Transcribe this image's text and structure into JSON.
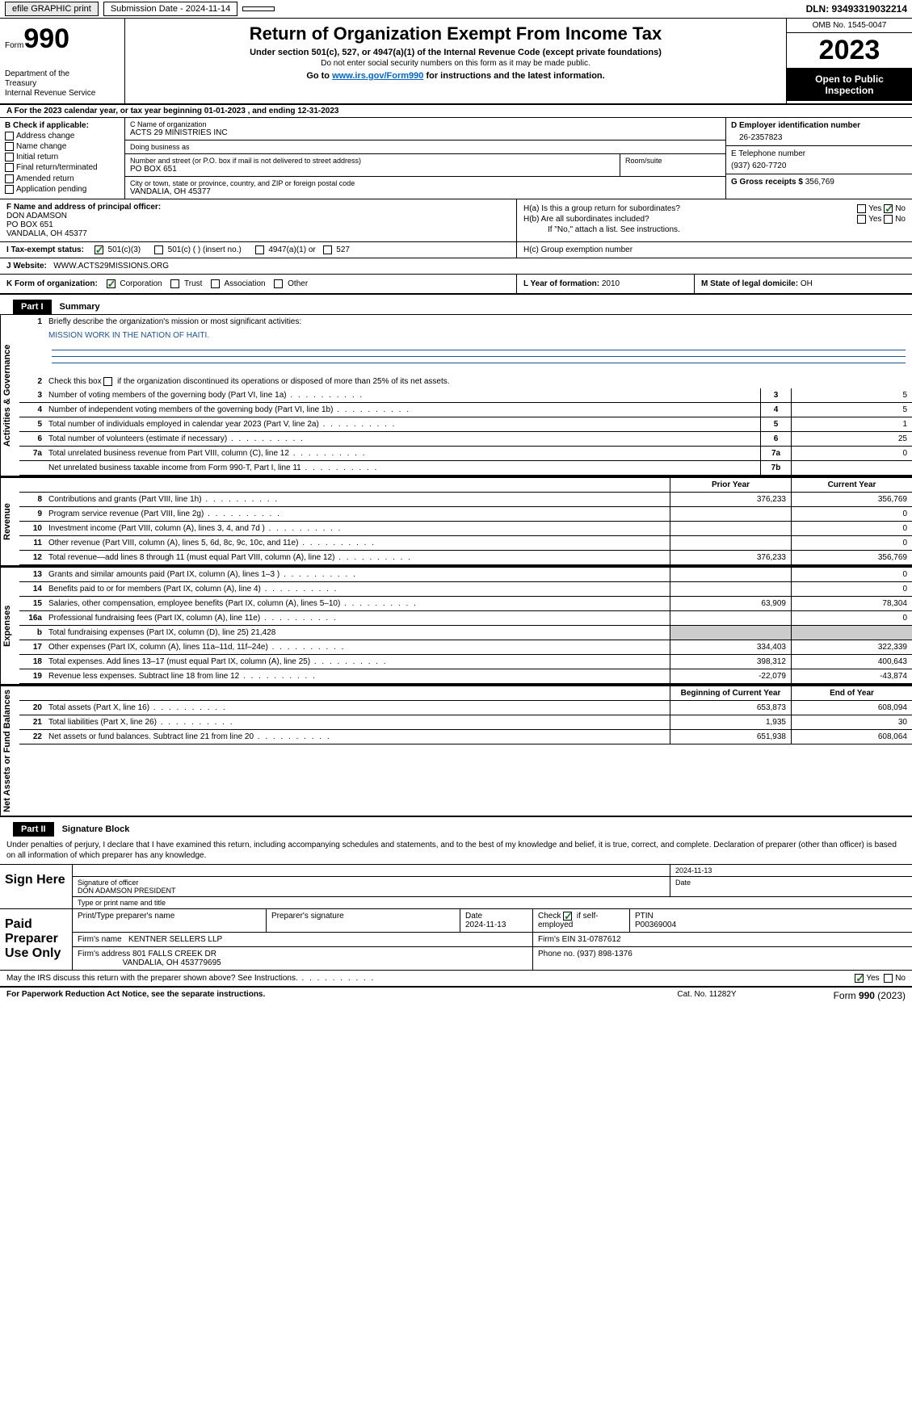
{
  "topbar": {
    "efile_btn": "efile GRAPHIC print",
    "submission_label": "Submission Date - 2024-11-14",
    "dln_label": "DLN: 93493319032214"
  },
  "header": {
    "form_label": "Form",
    "form_number": "990",
    "dept": "Department of the Treasury\nInternal Revenue Service",
    "title": "Return of Organization Exempt From Income Tax",
    "sub1": "Under section 501(c), 527, or 4947(a)(1) of the Internal Revenue Code (except private foundations)",
    "sub2": "Do not enter social security numbers on this form as it may be made public.",
    "link_pre": "Go to ",
    "link_url": "www.irs.gov/Form990",
    "link_post": " for instructions and the latest information.",
    "omb": "OMB No. 1545-0047",
    "year": "2023",
    "open": "Open to Public Inspection"
  },
  "line_a": "A For the 2023 calendar year, or tax year beginning 01-01-2023    , and ending 12-31-2023",
  "box_b": {
    "title": "B Check if applicable:",
    "items": [
      "Address change",
      "Name change",
      "Initial return",
      "Final return/terminated",
      "Amended return",
      "Application pending"
    ]
  },
  "box_c": {
    "name_lbl": "C Name of organization",
    "name": "ACTS 29 MINISTRIES INC",
    "dba_lbl": "Doing business as",
    "dba": "",
    "street_lbl": "Number and street (or P.O. box if mail is not delivered to street address)",
    "room_lbl": "Room/suite",
    "street": "PO BOX 651",
    "city_lbl": "City or town, state or province, country, and ZIP or foreign postal code",
    "city": "VANDALIA, OH  45377"
  },
  "box_d": {
    "lbl": "D Employer identification number",
    "val": "26-2357823"
  },
  "box_e": {
    "lbl": "E Telephone number",
    "val": "(937) 620-7720"
  },
  "box_g": {
    "lbl": "G Gross receipts $ ",
    "val": "356,769"
  },
  "box_f": {
    "lbl": "F  Name and address of principal officer:",
    "name": "DON ADAMSON",
    "street": "PO BOX 651",
    "city": "VANDALIA, OH  45377"
  },
  "box_h": {
    "ha_lbl": "H(a)  Is this a group return for subordinates?",
    "hb_lbl": "H(b)  Are all subordinates included?",
    "note": "If \"No,\" attach a list. See instructions.",
    "hc_lbl": "H(c)  Group exemption number"
  },
  "box_i": {
    "lbl": "I    Tax-exempt status:",
    "opts": [
      "501(c)(3)",
      "501(c) (  ) (insert no.)",
      "4947(a)(1) or",
      "527"
    ]
  },
  "box_j": {
    "lbl": "J    Website:",
    "val": "WWW.ACTS29MISSIONS.ORG"
  },
  "box_k": {
    "lbl": "K Form of organization:",
    "opts": [
      "Corporation",
      "Trust",
      "Association",
      "Other"
    ]
  },
  "box_l": {
    "lbl": "L Year of formation: ",
    "val": "2010"
  },
  "box_m": {
    "lbl": "M State of legal domicile: ",
    "val": "OH"
  },
  "part1": {
    "hdr": "Part I",
    "title": "Summary"
  },
  "summary": {
    "vert_gov": "Activities & Governance",
    "vert_rev": "Revenue",
    "vert_exp": "Expenses",
    "vert_net": "Net Assets or Fund Balances",
    "q1": "Briefly describe the organization's mission or most significant activities:",
    "mission": "MISSION WORK IN THE NATION OF HAITI.",
    "q2": "Check this box        if the organization discontinued its operations or disposed of more than 25% of its net assets.",
    "rows_gov": [
      {
        "n": "3",
        "d": "Number of voting members of the governing body (Part VI, line 1a)",
        "box": "3",
        "v": "5"
      },
      {
        "n": "4",
        "d": "Number of independent voting members of the governing body (Part VI, line 1b)",
        "box": "4",
        "v": "5"
      },
      {
        "n": "5",
        "d": "Total number of individuals employed in calendar year 2023 (Part V, line 2a)",
        "box": "5",
        "v": "1"
      },
      {
        "n": "6",
        "d": "Total number of volunteers (estimate if necessary)",
        "box": "6",
        "v": "25"
      },
      {
        "n": "7a",
        "d": "Total unrelated business revenue from Part VIII, column (C), line 12",
        "box": "7a",
        "v": "0"
      },
      {
        "n": "",
        "d": "Net unrelated business taxable income from Form 990-T, Part I, line 11",
        "box": "7b",
        "v": ""
      }
    ],
    "col_prior": "Prior Year",
    "col_current": "Current Year",
    "rows_rev": [
      {
        "n": "8",
        "d": "Contributions and grants (Part VIII, line 1h)",
        "p": "376,233",
        "c": "356,769"
      },
      {
        "n": "9",
        "d": "Program service revenue (Part VIII, line 2g)",
        "p": "",
        "c": "0"
      },
      {
        "n": "10",
        "d": "Investment income (Part VIII, column (A), lines 3, 4, and 7d )",
        "p": "",
        "c": "0"
      },
      {
        "n": "11",
        "d": "Other revenue (Part VIII, column (A), lines 5, 6d, 8c, 9c, 10c, and 11e)",
        "p": "",
        "c": "0"
      },
      {
        "n": "12",
        "d": "Total revenue—add lines 8 through 11 (must equal Part VIII, column (A), line 12)",
        "p": "376,233",
        "c": "356,769"
      }
    ],
    "rows_exp": [
      {
        "n": "13",
        "d": "Grants and similar amounts paid (Part IX, column (A), lines 1–3 )",
        "p": "",
        "c": "0"
      },
      {
        "n": "14",
        "d": "Benefits paid to or for members (Part IX, column (A), line 4)",
        "p": "",
        "c": "0"
      },
      {
        "n": "15",
        "d": "Salaries, other compensation, employee benefits (Part IX, column (A), lines 5–10)",
        "p": "63,909",
        "c": "78,304"
      },
      {
        "n": "16a",
        "d": "Professional fundraising fees (Part IX, column (A), line 11e)",
        "p": "",
        "c": "0"
      },
      {
        "n": "b",
        "d": "Total fundraising expenses (Part IX, column (D), line 25) 21,428",
        "gray": true
      },
      {
        "n": "17",
        "d": "Other expenses (Part IX, column (A), lines 11a–11d, 11f–24e)",
        "p": "334,403",
        "c": "322,339"
      },
      {
        "n": "18",
        "d": "Total expenses. Add lines 13–17 (must equal Part IX, column (A), line 25)",
        "p": "398,312",
        "c": "400,643"
      },
      {
        "n": "19",
        "d": "Revenue less expenses. Subtract line 18 from line 12",
        "p": "-22,079",
        "c": "-43,874"
      }
    ],
    "col_begin": "Beginning of Current Year",
    "col_end": "End of Year",
    "rows_net": [
      {
        "n": "20",
        "d": "Total assets (Part X, line 16)",
        "p": "653,873",
        "c": "608,094"
      },
      {
        "n": "21",
        "d": "Total liabilities (Part X, line 26)",
        "p": "1,935",
        "c": "30"
      },
      {
        "n": "22",
        "d": "Net assets or fund balances. Subtract line 21 from line 20",
        "p": "651,938",
        "c": "608,064"
      }
    ]
  },
  "part2": {
    "hdr": "Part II",
    "title": "Signature Block"
  },
  "sig_text": "Under penalties of perjury, I declare that I have examined this return, including accompanying schedules and statements, and to the best of my knowledge and belief, it is true, correct, and complete. Declaration of preparer (other than officer) is based on all information of which preparer has any knowledge.",
  "sign_here": {
    "lbl": "Sign Here",
    "date": "2024-11-13",
    "sig_lbl": "Signature of officer",
    "name": "DON ADAMSON  PRESIDENT",
    "name_lbl": "Type or print name and title",
    "date_lbl": "Date"
  },
  "preparer": {
    "lbl": "Paid Preparer Use Only",
    "hdr_name": "Print/Type preparer's name",
    "hdr_sig": "Preparer's signature",
    "hdr_date": "Date",
    "date": "2024-11-13",
    "check_lbl": "Check        if self-employed",
    "ptin_lbl": "PTIN",
    "ptin": "P00369004",
    "firm_name_lbl": "Firm's name",
    "firm_name": "KENTNER SELLERS LLP",
    "firm_ein_lbl": "Firm's EIN",
    "firm_ein": "31-0787612",
    "firm_addr_lbl": "Firm's address",
    "firm_addr1": "801 FALLS CREEK DR",
    "firm_addr2": "VANDALIA, OH  453779695",
    "phone_lbl": "Phone no.",
    "phone": "(937) 898-1376"
  },
  "discuss": "May the IRS discuss this return with the preparer shown above? See Instructions.",
  "footer": {
    "left": "For Paperwork Reduction Act Notice, see the separate instructions.",
    "mid": "Cat. No. 11282Y",
    "right_pre": "Form ",
    "right_num": "990",
    "right_post": " (2023)"
  },
  "yes": "Yes",
  "no": "No"
}
